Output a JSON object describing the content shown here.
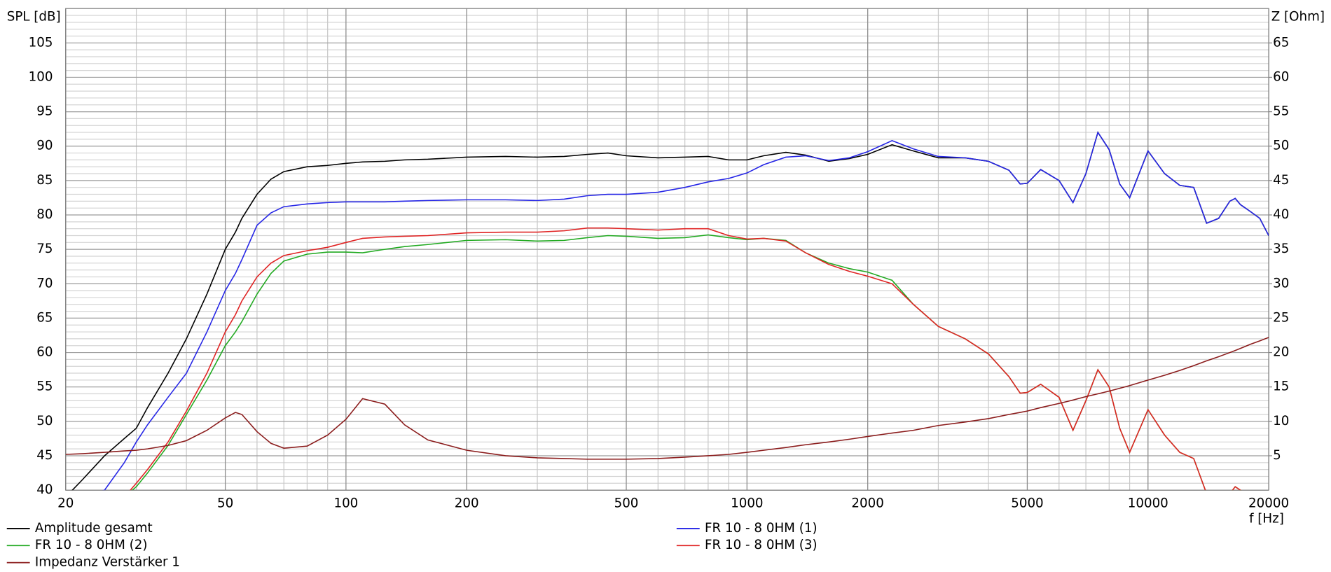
{
  "chart_data": {
    "type": "line",
    "y_label": "SPL [dB]",
    "y2_label": "Z [Ohm]",
    "x_label": "f [Hz]",
    "xscale": "log",
    "grid": true,
    "minor_grid": true,
    "legend": "bottom",
    "xlim": [
      20,
      20000
    ],
    "xticks": [
      20,
      50,
      100,
      200,
      500,
      1000,
      2000,
      5000,
      10000,
      20000
    ],
    "ylim": [
      40,
      110
    ],
    "yticks": [
      40,
      45,
      50,
      55,
      60,
      65,
      70,
      75,
      80,
      85,
      90,
      95,
      100,
      105
    ],
    "y2lim": [
      0,
      70
    ],
    "y2ticks": [
      5,
      10,
      15,
      20,
      25,
      30,
      35,
      40,
      45,
      50,
      55,
      60,
      65
    ],
    "x": [
      20,
      22,
      25,
      28,
      30,
      32,
      36,
      40,
      45,
      50,
      53,
      55,
      60,
      65,
      70,
      80,
      90,
      100,
      110,
      125,
      140,
      160,
      200,
      250,
      300,
      350,
      400,
      450,
      500,
      600,
      700,
      800,
      900,
      1000,
      1100,
      1250,
      1400,
      1600,
      1800,
      2000,
      2300,
      2600,
      3000,
      3500,
      4000,
      4500,
      4800,
      5000,
      5400,
      6000,
      6500,
      7000,
      7500,
      8000,
      8500,
      9000,
      10000,
      11000,
      12000,
      13000,
      14000,
      15000,
      16000,
      16500,
      17000,
      18000,
      19000,
      20000
    ],
    "series": [
      {
        "name": "Amplitude gesamt",
        "color": "#000000",
        "values": [
          39,
          41.5,
          45,
          47.5,
          49,
          52,
          57,
          62,
          68.5,
          75,
          77.5,
          79.5,
          83,
          85.2,
          86.3,
          87,
          87.2,
          87.5,
          87.7,
          87.8,
          88,
          88.1,
          88.4,
          88.5,
          88.4,
          88.5,
          88.8,
          89,
          88.6,
          88.3,
          88.4,
          88.5,
          88,
          88,
          88.6,
          89.1,
          88.7,
          87.8,
          88.2,
          88.8,
          90.2,
          89.3,
          88.3,
          88.3,
          87.8,
          86.5,
          84.5,
          84.6,
          86.6,
          85,
          81.8,
          86,
          92,
          89.5,
          84.5,
          82.5,
          89.3,
          86,
          84.3,
          84,
          78.8,
          79.5,
          82,
          82.4,
          81.5,
          80.5,
          79.5,
          77
        ]
      },
      {
        "name": "FR 10 - 8 0HM (1)",
        "color": "#2626e6",
        "values": [
          39,
          39,
          40,
          44,
          47,
          49.5,
          53.5,
          57,
          63,
          69,
          71.5,
          73.5,
          78.5,
          80.3,
          81.2,
          81.6,
          81.8,
          81.9,
          81.9,
          81.9,
          82,
          82.1,
          82.2,
          82.2,
          82.1,
          82.3,
          82.8,
          83,
          83,
          83.3,
          84,
          84.8,
          85.3,
          86.1,
          87.3,
          88.4,
          88.6,
          87.9,
          88.3,
          89.2,
          90.8,
          89.6,
          88.5,
          88.3,
          87.8,
          86.5,
          84.5,
          84.6,
          86.6,
          85,
          81.8,
          86,
          92,
          89.5,
          84.5,
          82.5,
          89.3,
          86,
          84.3,
          84,
          78.8,
          79.5,
          82,
          82.4,
          81.5,
          80.5,
          79.5,
          77
        ]
      },
      {
        "name": "FR 10 - 8 0HM (2)",
        "color": "#22aa22",
        "values": [
          39,
          39,
          39,
          39,
          40.5,
          42.5,
          46.5,
          51,
          56,
          61,
          63,
          64.5,
          68.5,
          71.5,
          73.3,
          74.3,
          74.6,
          74.6,
          74.5,
          75,
          75.4,
          75.7,
          76.3,
          76.4,
          76.2,
          76.3,
          76.7,
          77,
          76.9,
          76.6,
          76.7,
          77.1,
          76.7,
          76.4,
          76.6,
          76.3,
          74.5,
          73,
          72.2,
          71.7,
          70.5,
          67,
          63.8,
          62,
          59.8,
          56.5,
          54.1,
          54.2,
          55.4,
          53.5,
          48.7,
          53,
          57.5,
          55,
          49,
          45.5,
          51.7,
          48,
          45.5,
          44.6,
          39.5,
          39,
          39.5,
          40.5,
          40,
          39,
          39,
          39
        ]
      },
      {
        "name": "FR 10 - 8 0HM (3)",
        "color": "#e02424",
        "values": [
          39,
          39,
          39,
          39,
          41,
          43,
          47,
          51.5,
          57,
          63,
          65.5,
          67.5,
          71,
          73,
          74.1,
          74.8,
          75.3,
          76,
          76.6,
          76.8,
          76.9,
          77,
          77.4,
          77.5,
          77.5,
          77.7,
          78.1,
          78.1,
          78,
          77.8,
          78,
          78,
          77,
          76.5,
          76.6,
          76.2,
          74.5,
          72.8,
          71.8,
          71.1,
          70,
          67,
          63.8,
          62,
          59.8,
          56.5,
          54.1,
          54.2,
          55.4,
          53.5,
          48.7,
          53,
          57.5,
          55,
          49,
          45.5,
          51.7,
          48,
          45.5,
          44.6,
          39.5,
          39,
          39.5,
          40.5,
          40,
          39,
          39,
          39
        ]
      },
      {
        "name": "Impedanz Verstärker 1",
        "color": "#8b1c1c",
        "axis": "y2",
        "values": [
          5.2,
          5.3,
          5.5,
          5.7,
          5.8,
          6,
          6.5,
          7.2,
          8.7,
          10.5,
          11.3,
          11,
          8.5,
          6.8,
          6.1,
          6.4,
          8,
          10.3,
          13.3,
          12.5,
          9.5,
          7.3,
          5.8,
          5,
          4.7,
          4.6,
          4.5,
          4.5,
          4.5,
          4.6,
          4.8,
          5,
          5.2,
          5.5,
          5.8,
          6.2,
          6.6,
          7,
          7.4,
          7.8,
          8.3,
          8.7,
          9.4,
          9.9,
          10.4,
          11,
          11.3,
          11.5,
          12,
          12.6,
          13.1,
          13.6,
          14,
          14.4,
          14.8,
          15.2,
          16,
          16.7,
          17.4,
          18.1,
          18.8,
          19.4,
          20,
          20.3,
          20.6,
          21.2,
          21.7,
          22.2
        ]
      }
    ]
  }
}
